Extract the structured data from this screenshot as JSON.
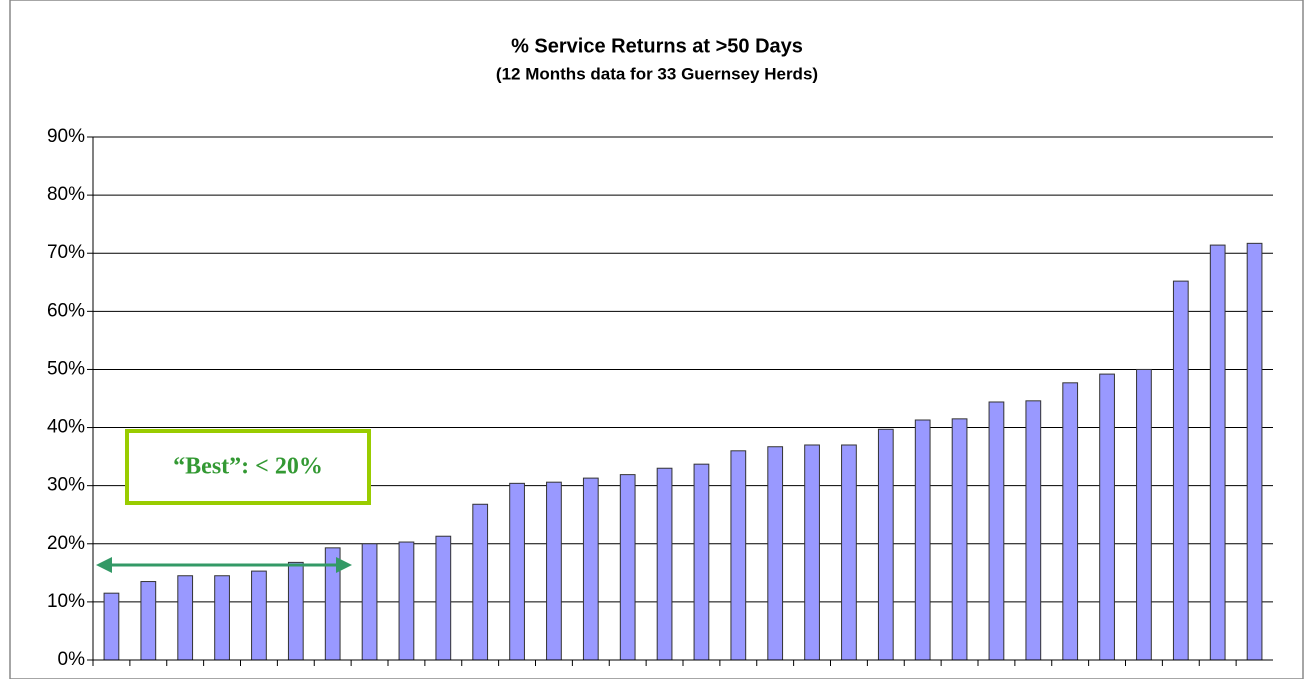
{
  "chart_data": {
    "type": "bar",
    "title": "% Service Returns at  >50 Days",
    "subtitle": "(12 Months data for 33 Guernsey Herds)",
    "values": [
      11.5,
      13.5,
      14.5,
      14.5,
      15.3,
      16.8,
      19.3,
      20,
      20.3,
      21.3,
      26.8,
      30.4,
      30.6,
      31.3,
      31.9,
      33,
      33.7,
      36,
      36.7,
      37,
      37,
      39.7,
      41.3,
      41.5,
      44.4,
      44.6,
      47.7,
      49.2,
      50,
      65.2,
      71.4,
      71.7
    ],
    "color": "#9999ff",
    "ylim": [
      0,
      90
    ],
    "yticks": [
      {
        "value": 0,
        "label": "0%"
      },
      {
        "value": 10,
        "label": "10%"
      },
      {
        "value": 20,
        "label": "20%"
      },
      {
        "value": 30,
        "label": "30%"
      },
      {
        "value": 40,
        "label": "40%"
      },
      {
        "value": 50,
        "label": "50%"
      },
      {
        "value": 60,
        "label": "60%"
      },
      {
        "value": 70,
        "label": "70%"
      },
      {
        "value": 80,
        "label": "80%"
      },
      {
        "value": 90,
        "label": "90%"
      }
    ],
    "grid": true,
    "annotation": "“Best”: < 20%"
  }
}
